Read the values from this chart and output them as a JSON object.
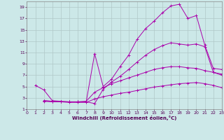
{
  "xlabel": "Windchill (Refroidissement éolien,°C)",
  "background_color": "#cce8e8",
  "grid_color": "#b0c8c8",
  "line_color": "#aa00aa",
  "xlim": [
    0,
    23
  ],
  "ylim": [
    1,
    20
  ],
  "xticks": [
    0,
    1,
    2,
    3,
    4,
    5,
    6,
    7,
    8,
    9,
    10,
    11,
    12,
    13,
    14,
    15,
    16,
    17,
    18,
    19,
    20,
    21,
    22,
    23
  ],
  "yticks": [
    1,
    3,
    5,
    7,
    9,
    11,
    13,
    15,
    17,
    19
  ],
  "curves": [
    {
      "x": [
        1,
        2,
        3,
        4,
        5,
        6,
        7,
        8,
        9,
        10,
        11,
        12,
        13,
        14,
        15,
        16,
        17,
        18,
        19,
        20,
        21,
        22,
        23
      ],
      "y": [
        5.2,
        4.4,
        2.5,
        2.4,
        2.3,
        2.3,
        2.3,
        10.8,
        5.0,
        6.3,
        8.5,
        10.5,
        13.3,
        15.2,
        16.5,
        18.0,
        19.2,
        19.5,
        17.0,
        17.5,
        12.3,
        8.2,
        8.0
      ]
    },
    {
      "x": [
        2,
        3,
        4,
        5,
        6,
        7,
        8,
        9,
        10,
        11,
        12,
        13,
        14,
        15,
        16,
        17,
        18,
        19,
        20,
        21,
        22,
        23
      ],
      "y": [
        2.5,
        2.4,
        2.3,
        2.3,
        2.3,
        2.3,
        2.0,
        4.5,
        5.8,
        6.8,
        8.0,
        9.3,
        10.5,
        11.5,
        12.2,
        12.7,
        12.5,
        12.3,
        12.5,
        12.0,
        7.5,
        7.0
      ]
    },
    {
      "x": [
        2,
        3,
        4,
        5,
        6,
        7,
        8,
        9,
        10,
        11,
        12,
        13,
        14,
        15,
        16,
        17,
        18,
        19,
        20,
        21,
        22,
        23
      ],
      "y": [
        2.5,
        2.4,
        2.3,
        2.3,
        2.3,
        2.4,
        4.0,
        4.8,
        5.5,
        6.0,
        6.5,
        7.0,
        7.5,
        8.0,
        8.3,
        8.5,
        8.5,
        8.3,
        8.2,
        7.8,
        7.5,
        7.2
      ]
    },
    {
      "x": [
        2,
        3,
        4,
        5,
        6,
        7,
        8,
        9,
        10,
        11,
        12,
        13,
        14,
        15,
        16,
        17,
        18,
        19,
        20,
        21,
        22,
        23
      ],
      "y": [
        2.4,
        2.3,
        2.3,
        2.2,
        2.2,
        2.2,
        2.8,
        3.2,
        3.5,
        3.8,
        4.0,
        4.3,
        4.6,
        4.9,
        5.1,
        5.3,
        5.5,
        5.6,
        5.7,
        5.5,
        5.2,
        4.8
      ]
    }
  ]
}
